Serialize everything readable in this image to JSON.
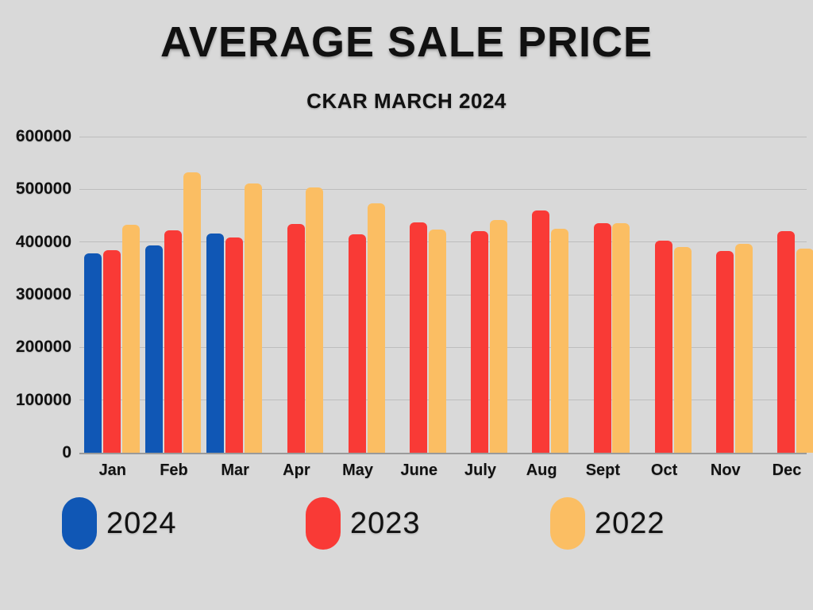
{
  "title": "AVERAGE SALE PRICE",
  "subtitle": "CKAR MARCH 2024",
  "colors": {
    "background": "#d9d9d9",
    "series_2024": "#1057b5",
    "series_2023": "#f93a36",
    "series_2022": "#fbbe63",
    "gridline": "#bdbdbd",
    "axis": "#9a9a9a",
    "text": "#111111"
  },
  "chart_data": {
    "type": "bar",
    "title": "AVERAGE SALE PRICE",
    "subtitle": "CKAR MARCH 2024",
    "categories": [
      "Jan",
      "Feb",
      "Mar",
      "Apr",
      "May",
      "June",
      "July",
      "Aug",
      "Sept",
      "Oct",
      "Nov",
      "Dec"
    ],
    "series": [
      {
        "name": "2024",
        "color": "#1057b5",
        "values": [
          379000,
          393000,
          416000,
          null,
          null,
          null,
          null,
          null,
          null,
          null,
          null,
          null
        ]
      },
      {
        "name": "2023",
        "color": "#f93a36",
        "values": [
          385000,
          422000,
          408000,
          434000,
          415000,
          437000,
          420000,
          460000,
          436000,
          402000,
          383000,
          421000
        ]
      },
      {
        "name": "2022",
        "color": "#fbbe63",
        "values": [
          433000,
          532000,
          511000,
          504000,
          473000,
          423000,
          442000,
          425000,
          436000,
          391000,
          396000,
          388000
        ]
      }
    ],
    "ylim": [
      0,
      600000
    ],
    "ytick_interval": 100000,
    "ytick_labels": [
      "600000",
      "500000",
      "400000",
      "300000",
      "200000",
      "100000",
      "0"
    ],
    "xlabel": "",
    "ylabel": "",
    "grid": true,
    "legend_position": "bottom-left"
  },
  "legend": {
    "items": [
      {
        "label": "2024",
        "color": "#1057b5"
      },
      {
        "label": "2023",
        "color": "#f93a36"
      },
      {
        "label": "2022",
        "color": "#fbbe63"
      }
    ]
  }
}
